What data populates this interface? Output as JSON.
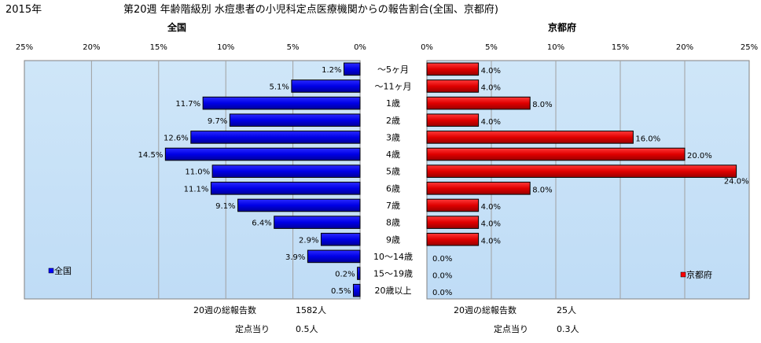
{
  "header": {
    "year": "2015年",
    "title": "第20週 年齢階級別 水痘患者の小児科定点医療機関からの報告割合(全国、京都府)"
  },
  "chart_data": [
    {
      "type": "bar",
      "orientation": "horizontal",
      "direction": "right-to-left",
      "title": "全国",
      "series": [
        {
          "name": "全国",
          "color": "#0000ff",
          "values": [
            1.2,
            5.1,
            11.7,
            9.7,
            12.6,
            14.5,
            11.0,
            11.1,
            9.1,
            6.4,
            2.9,
            3.9,
            0.2,
            0.5
          ],
          "labels": [
            "1.2%",
            "5.1%",
            "11.7%",
            "9.7%",
            "12.6%",
            "14.5%",
            "11.0%",
            "11.1%",
            "9.1%",
            "6.4%",
            "2.9%",
            "3.9%",
            "0.2%",
            "0.5%"
          ]
        }
      ],
      "xlim": [
        0,
        25
      ],
      "ticks": [
        "0%",
        "5%",
        "10%",
        "15%",
        "20%",
        "25%"
      ],
      "legend": "bottom-left",
      "grid": true
    },
    {
      "type": "bar",
      "orientation": "horizontal",
      "direction": "left-to-right",
      "title": "京都府",
      "series": [
        {
          "name": "京都府",
          "color": "#ff0000",
          "values": [
            4.0,
            4.0,
            8.0,
            4.0,
            16.0,
            20.0,
            24.0,
            8.0,
            4.0,
            4.0,
            4.0,
            0,
            0,
            0
          ],
          "labels": [
            "4.0%",
            "4.0%",
            "8.0%",
            "4.0%",
            "16.0%",
            "20.0%",
            "24.0%",
            "8.0%",
            "4.0%",
            "4.0%",
            "4.0%",
            "0.0%",
            "0.0%",
            "0.0%"
          ]
        }
      ],
      "xlim": [
        0,
        25
      ],
      "ticks": [
        "0%",
        "5%",
        "10%",
        "15%",
        "20%",
        "25%"
      ],
      "legend": "bottom-right",
      "grid": true
    }
  ],
  "categories": [
    "～5ヶ月",
    "～11ヶ月",
    "1歳",
    "2歳",
    "3歳",
    "4歳",
    "5歳",
    "6歳",
    "7歳",
    "8歳",
    "9歳",
    "10～14歳",
    "15～19歳",
    "20歳以上"
  ],
  "footer": {
    "national_total_label": "20週の総報告数",
    "national_total_value": "1582人",
    "national_per_label": "定点当り",
    "national_per_value": "0.5人",
    "kyoto_total_label": "20週の総報告数",
    "kyoto_total_value": "25人",
    "kyoto_per_label": "定点当り",
    "kyoto_per_value": "0.3人"
  }
}
